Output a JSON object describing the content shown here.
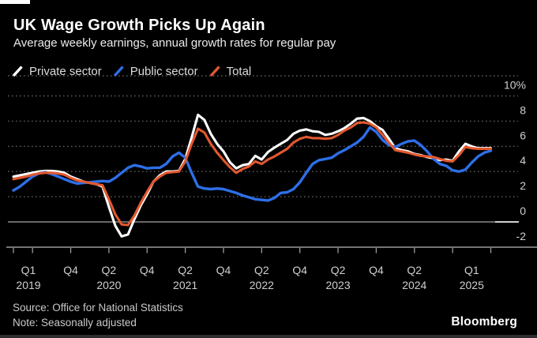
{
  "page": {
    "source": "Source: Office for National Statistics",
    "note": "Note: Seasonally adjusted",
    "brand": "Bloomberg",
    "background_color": "#000000"
  },
  "header": {
    "title": "UK Wage Growth Picks Up Again",
    "subtitle": "Average weekly earnings, annual growth rates for regular pay"
  },
  "chart_data": {
    "type": "line",
    "unit": "%",
    "grid": "dotted",
    "legend_position": "top",
    "x_range": {
      "start": "2019-01",
      "end": "2025-04",
      "step": "monthly"
    },
    "y_axis": {
      "tick_labels": [
        "10%",
        "8",
        "6",
        "4",
        "2",
        "0",
        "-2"
      ],
      "tick_values": [
        10,
        8,
        6,
        4,
        2,
        0,
        -2
      ],
      "ylim": [
        -2,
        11.6
      ],
      "zero_line": "solid",
      "label_color": "#cfcfcf"
    },
    "x_tick_labels": [
      {
        "quarter": "Q1",
        "year": "2019",
        "month_index": 0
      },
      {
        "quarter": "Q4",
        "year": "",
        "month_index": 9
      },
      {
        "quarter": "Q2",
        "year": "2020",
        "month_index": 15
      },
      {
        "quarter": "Q4",
        "year": "",
        "month_index": 21
      },
      {
        "quarter": "Q2",
        "year": "2021",
        "month_index": 27
      },
      {
        "quarter": "Q4",
        "year": "",
        "month_index": 33
      },
      {
        "quarter": "Q2",
        "year": "2022",
        "month_index": 39
      },
      {
        "quarter": "Q4",
        "year": "",
        "month_index": 45
      },
      {
        "quarter": "Q2",
        "year": "2023",
        "month_index": 51
      },
      {
        "quarter": "Q4",
        "year": "",
        "month_index": 57
      },
      {
        "quarter": "Q2",
        "year": "2024",
        "month_index": 63
      },
      {
        "quarter": "Q1",
        "year": "2025",
        "month_index": 72
      }
    ],
    "axis_tick_month_indices": [
      0,
      3,
      9,
      15,
      21,
      27,
      33,
      39,
      45,
      51,
      57,
      63,
      69,
      75
    ],
    "series": [
      {
        "name": "Private sector",
        "color": "#FFFFFF",
        "values": [
          3.6,
          3.7,
          3.8,
          3.9,
          4.0,
          4.05,
          4.05,
          4.0,
          3.9,
          3.6,
          3.4,
          3.2,
          3.1,
          3.0,
          2.8,
          1.2,
          -0.3,
          -1.15,
          -1.0,
          0.2,
          1.3,
          2.2,
          3.2,
          3.7,
          4.0,
          4.0,
          4.05,
          5.0,
          6.7,
          8.5,
          8.1,
          7.0,
          6.2,
          5.6,
          4.75,
          4.25,
          4.5,
          4.6,
          5.25,
          4.95,
          5.55,
          5.9,
          6.2,
          6.5,
          7.0,
          7.25,
          7.35,
          7.2,
          7.15,
          6.9,
          7.0,
          7.2,
          7.45,
          7.8,
          8.2,
          8.25,
          8.0,
          7.6,
          7.3,
          6.6,
          5.85,
          5.7,
          5.6,
          5.4,
          5.3,
          5.15,
          5.05,
          4.9,
          4.95,
          4.85,
          5.6,
          6.2,
          6.0,
          5.85,
          5.85,
          5.85
        ]
      },
      {
        "name": "Public sector",
        "color": "#2D6FE8",
        "values": [
          2.5,
          2.8,
          3.2,
          3.6,
          3.85,
          3.95,
          3.8,
          3.6,
          3.4,
          3.2,
          3.05,
          3.1,
          3.15,
          3.2,
          3.25,
          3.2,
          3.5,
          3.9,
          4.3,
          4.5,
          4.4,
          4.25,
          4.3,
          4.3,
          4.6,
          5.2,
          5.5,
          5.1,
          3.9,
          2.8,
          2.65,
          2.6,
          2.65,
          2.6,
          2.45,
          2.3,
          2.1,
          1.95,
          1.8,
          1.75,
          1.7,
          1.9,
          2.3,
          2.35,
          2.6,
          3.15,
          3.9,
          4.6,
          4.9,
          5.0,
          5.1,
          5.45,
          5.7,
          6.0,
          6.3,
          6.75,
          7.5,
          7.15,
          6.5,
          6.1,
          5.95,
          6.2,
          6.4,
          6.45,
          6.1,
          5.6,
          5.0,
          4.6,
          4.45,
          4.1,
          4.0,
          4.15,
          4.7,
          5.2,
          5.5,
          5.65
        ]
      },
      {
        "name": "Total",
        "color": "#E3582F",
        "values": [
          3.4,
          3.5,
          3.6,
          3.75,
          3.85,
          3.9,
          3.9,
          3.85,
          3.75,
          3.5,
          3.3,
          3.2,
          3.1,
          3.0,
          2.9,
          1.8,
          0.6,
          -0.2,
          -0.25,
          0.5,
          1.5,
          2.4,
          3.2,
          3.6,
          3.9,
          3.95,
          4.0,
          4.8,
          6.2,
          7.4,
          7.1,
          6.2,
          5.5,
          4.9,
          4.35,
          3.9,
          4.2,
          4.4,
          4.8,
          4.6,
          4.95,
          5.2,
          5.5,
          5.8,
          6.3,
          6.6,
          6.75,
          6.65,
          6.65,
          6.6,
          6.65,
          6.9,
          7.25,
          7.5,
          7.85,
          7.9,
          7.8,
          7.5,
          6.9,
          6.3,
          5.7,
          5.6,
          5.5,
          5.35,
          5.25,
          5.2,
          5.15,
          5.0,
          4.85,
          4.8,
          5.3,
          5.95,
          5.85,
          5.8,
          5.8,
          5.8
        ]
      }
    ]
  }
}
